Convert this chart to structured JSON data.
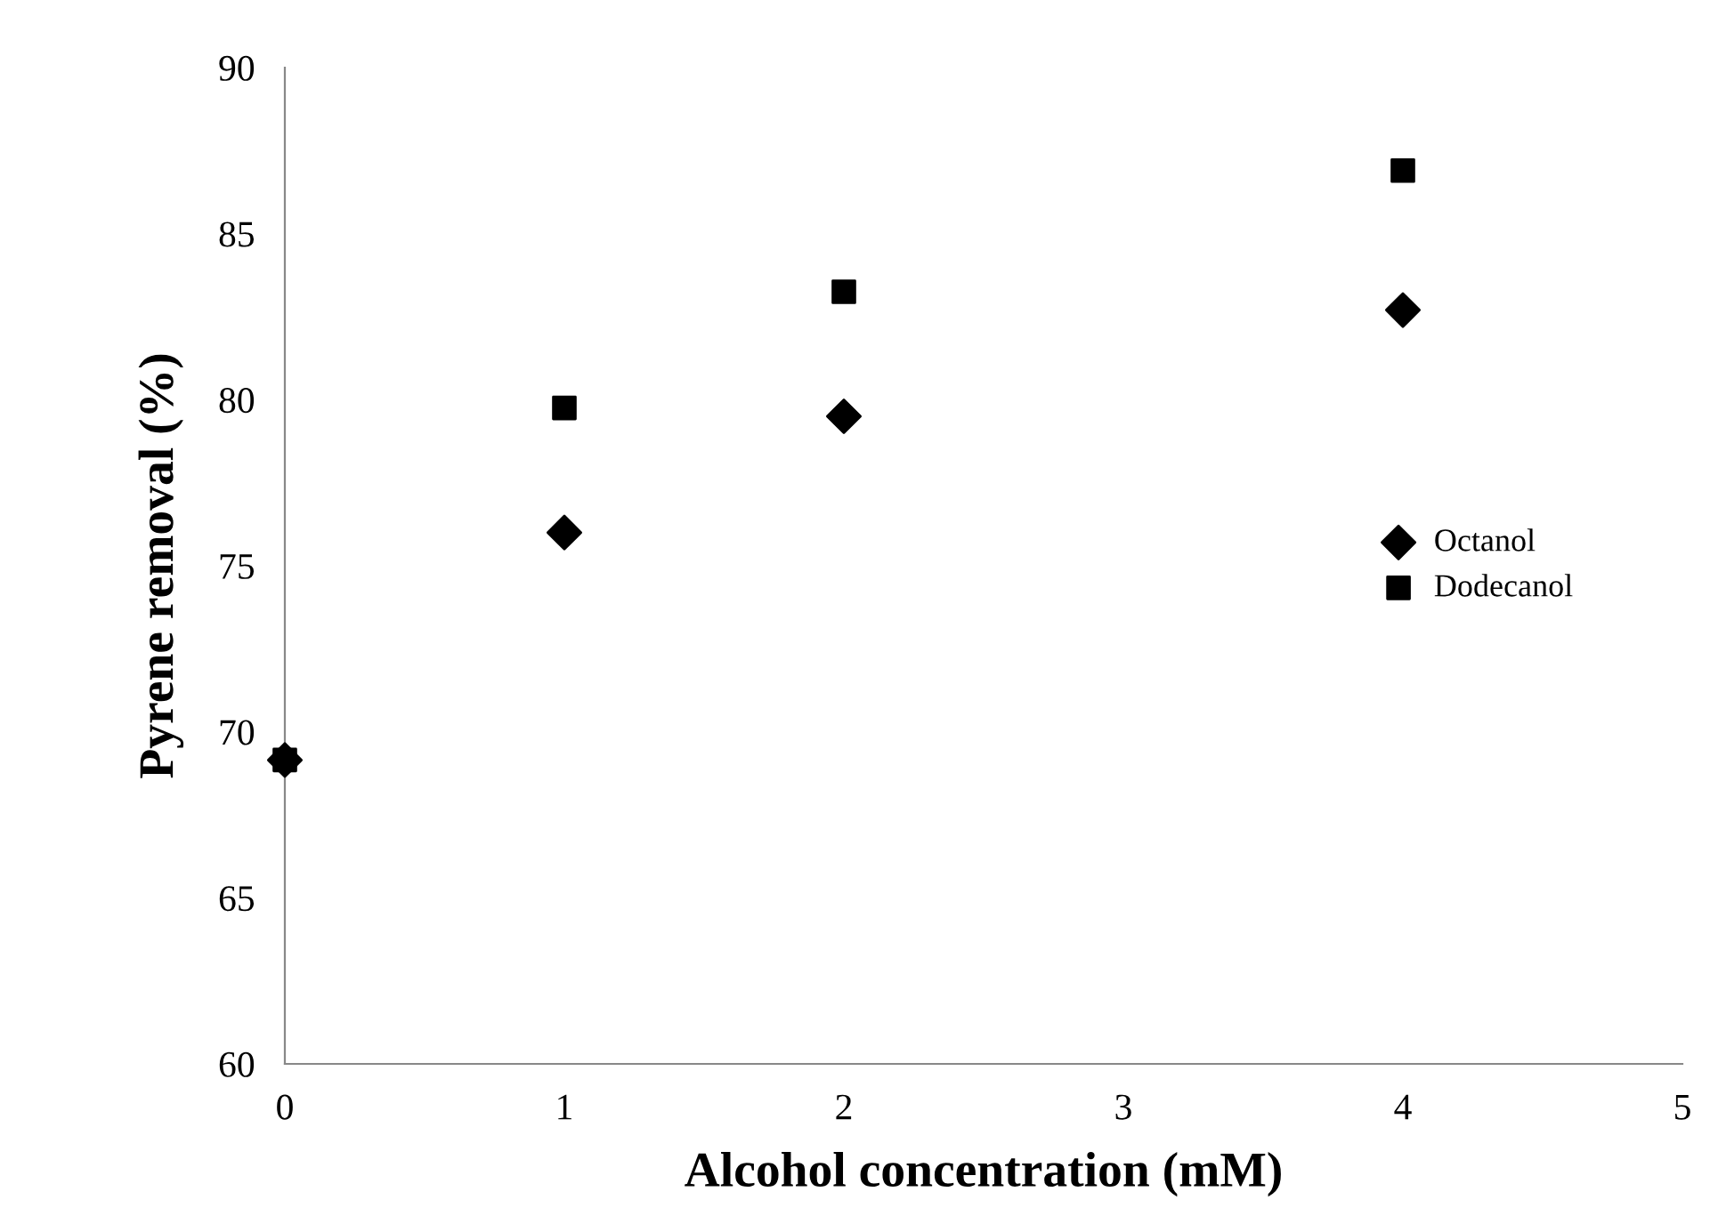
{
  "chart_data": {
    "type": "scatter",
    "xlabel": "Alcohol concentration (mM)",
    "ylabel": "Pyrene removal (%)",
    "x": [
      0,
      1,
      2,
      4
    ],
    "series": [
      {
        "name": "Octanol",
        "color": "#000000",
        "marker": "diamond",
        "values": [
          69.15,
          76.0,
          79.5,
          82.7
        ]
      },
      {
        "name": "Dodecanol",
        "color": "#000000",
        "marker": "square",
        "values": [
          69.15,
          79.75,
          83.25,
          86.9
        ]
      }
    ],
    "xlim": [
      0,
      5
    ],
    "xticks": [
      0,
      1,
      2,
      3,
      4,
      5
    ],
    "ylim": [
      60,
      90
    ],
    "yticks": [
      60,
      65,
      70,
      75,
      80,
      85,
      90
    ],
    "grid": false,
    "legend": "right"
  }
}
